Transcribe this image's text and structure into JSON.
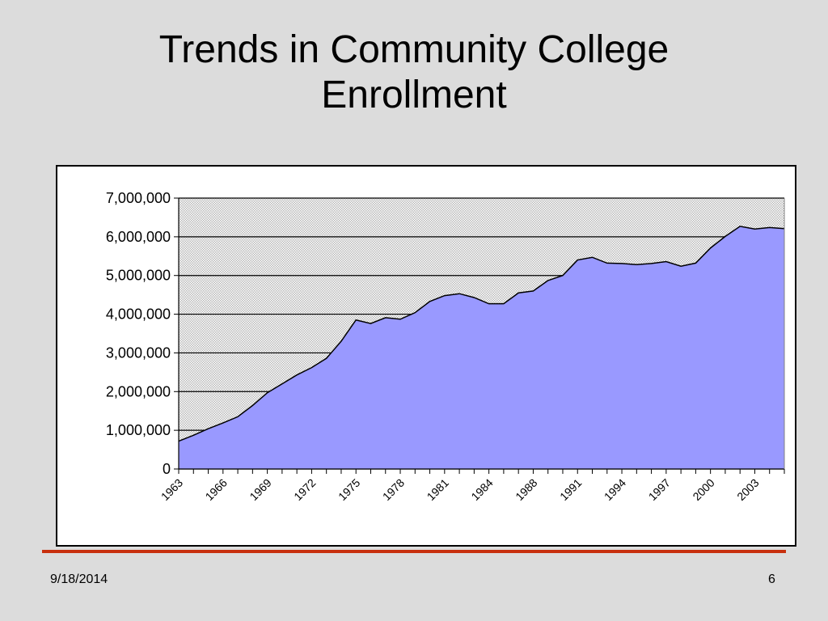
{
  "slide": {
    "title_line1": "Trends in Community College",
    "title_line2": "Enrollment",
    "date": "9/18/2014",
    "page_number": "6"
  },
  "colors": {
    "area_fill": "#9999ff",
    "line": "#000000",
    "plot_bg": "#c0c0c0",
    "footer_rule": "#c8300e"
  },
  "chart_data": {
    "type": "area",
    "title": "",
    "xlabel": "",
    "ylabel": "",
    "ylim": [
      0,
      7000000
    ],
    "yticks": [
      0,
      1000000,
      2000000,
      3000000,
      4000000,
      5000000,
      6000000,
      7000000
    ],
    "ytick_labels": [
      "0",
      "1,000,000",
      "2,000,000",
      "3,000,000",
      "4,000,000",
      "5,000,000",
      "6,000,000",
      "7,000,000"
    ],
    "xtick_labels": [
      "1963",
      "1966",
      "1969",
      "1972",
      "1975",
      "1978",
      "1981",
      "1984",
      "1988",
      "1991",
      "1994",
      "1997",
      "2000",
      "2003"
    ],
    "grid": true,
    "legend": "none",
    "values": [
      720000,
      870000,
      1040000,
      1190000,
      1350000,
      1640000,
      1970000,
      2200000,
      2430000,
      2620000,
      2860000,
      3300000,
      3850000,
      3760000,
      3910000,
      3870000,
      4040000,
      4330000,
      4480000,
      4530000,
      4430000,
      4270000,
      4270000,
      4550000,
      4600000,
      4870000,
      5000000,
      5400000,
      5470000,
      5320000,
      5310000,
      5280000,
      5310000,
      5360000,
      5240000,
      5320000,
      5710000,
      6010000,
      6270000,
      6200000,
      6240000,
      6210000
    ]
  }
}
